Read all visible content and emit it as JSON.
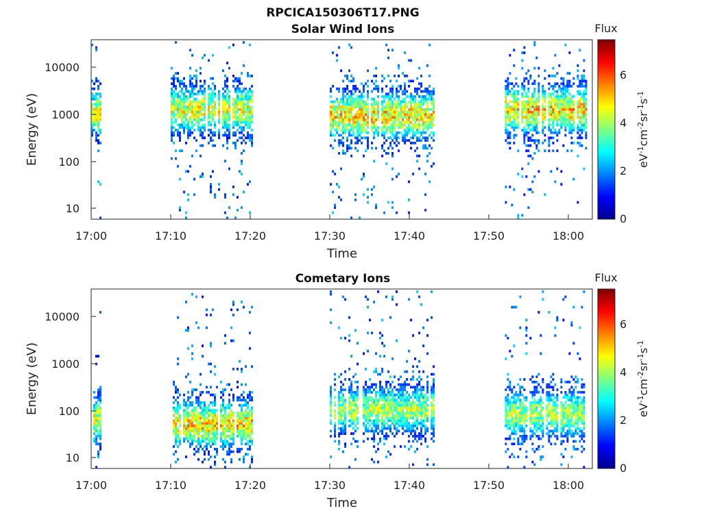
{
  "figure_title": "RPCICA150306T17.PNG",
  "colors": {
    "colormap": [
      "#00008f",
      "#0000ff",
      "#0080ff",
      "#00ffff",
      "#80ff80",
      "#ffff00",
      "#ff8000",
      "#ff0000",
      "#800000"
    ],
    "axis": "#222222"
  },
  "chart_data": [
    {
      "type": "heatmap",
      "title": "Solar Wind Ions",
      "xlabel": "Time",
      "ylabel": "Energy (eV)",
      "yscale": "log",
      "xlim": [
        "17:00",
        "18:03"
      ],
      "ylim": [
        6,
        40000
      ],
      "x_ticks": [
        "17:00",
        "17:10",
        "17:20",
        "17:30",
        "17:40",
        "17:50",
        "18:00"
      ],
      "y_ticks": [
        "10",
        "100",
        "1000",
        "10000"
      ],
      "colorbar": {
        "label": "Flux",
        "units": "eV-1cm-2sr-1s-1",
        "range": [
          0,
          7.4
        ],
        "ticks": [
          "0",
          "2",
          "4",
          "6"
        ]
      },
      "grid": false,
      "bursts": [
        {
          "t_start": "17:00",
          "t_end": "17:01",
          "peak_energy": 1000,
          "peak_flux": 5.5
        },
        {
          "t_start": "17:10",
          "t_end": "17:20",
          "peak_energy": 1200,
          "peak_flux": 5.5
        },
        {
          "t_start": "17:30",
          "t_end": "17:43",
          "peak_energy": 900,
          "peak_flux": 6.0
        },
        {
          "t_start": "17:52",
          "t_end": "18:02",
          "peak_energy": 1200,
          "peak_flux": 6.0
        }
      ]
    },
    {
      "type": "heatmap",
      "title": "Cometary Ions",
      "xlabel": "Time",
      "ylabel": "Energy (eV)",
      "yscale": "log",
      "xlim": [
        "17:00",
        "18:03"
      ],
      "ylim": [
        6,
        40000
      ],
      "x_ticks": [
        "17:00",
        "17:10",
        "17:20",
        "17:30",
        "17:40",
        "17:50",
        "18:00"
      ],
      "y_ticks": [
        "10",
        "100",
        "1000",
        "10000"
      ],
      "colorbar": {
        "label": "Flux",
        "units": "eV-1cm-2sr-1s-1",
        "range": [
          0,
          7.4
        ],
        "ticks": [
          "0",
          "2",
          "4",
          "6"
        ]
      },
      "grid": false,
      "bursts": [
        {
          "t_start": "17:00",
          "t_end": "17:01",
          "peak_energy": 60,
          "peak_flux": 5.5
        },
        {
          "t_start": "17:10",
          "t_end": "17:20",
          "peak_energy": 50,
          "peak_flux": 6.0
        },
        {
          "t_start": "17:30",
          "t_end": "17:43",
          "peak_energy": 100,
          "peak_flux": 5.0
        },
        {
          "t_start": "17:52",
          "t_end": "18:02",
          "peak_energy": 80,
          "peak_flux": 5.0
        }
      ]
    }
  ]
}
